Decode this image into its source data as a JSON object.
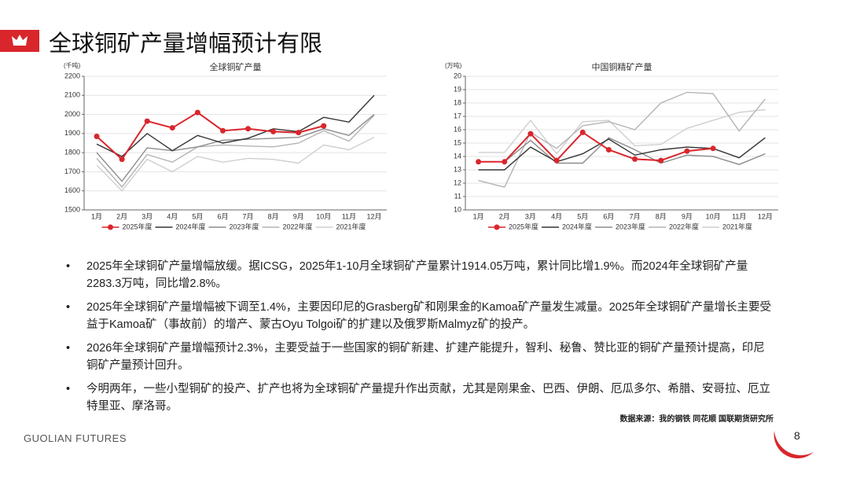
{
  "header": {
    "title": "全球铜矿产量增幅预计有限"
  },
  "chart_data": [
    {
      "type": "line",
      "title": "全球铜矿产量",
      "y_unit": "(千吨)",
      "categories": [
        "1月",
        "2月",
        "3月",
        "4月",
        "5月",
        "6月",
        "7月",
        "8月",
        "9月",
        "10月",
        "11月",
        "12月"
      ],
      "ylim": [
        1500,
        2200
      ],
      "yticks": [
        1500,
        1600,
        1700,
        1800,
        1900,
        2000,
        2100,
        2200
      ],
      "grid": true,
      "legend": "bottom",
      "series": [
        {
          "name": "2025年度",
          "color": "#d9262c",
          "marker": "circle",
          "values": [
            1885,
            1765,
            1965,
            1930,
            2010,
            1915,
            1925,
            1910,
            1905,
            1940,
            null,
            null
          ]
        },
        {
          "name": "2024年度",
          "color": "#333333",
          "values": [
            1845,
            1780,
            1900,
            1810,
            1890,
            1850,
            1875,
            1925,
            1910,
            1985,
            1960,
            2100
          ]
        },
        {
          "name": "2023年度",
          "color": "#8c8c8c",
          "values": [
            1800,
            1650,
            1825,
            1810,
            1830,
            1865,
            1870,
            1875,
            1880,
            1925,
            1890,
            2000
          ]
        },
        {
          "name": "2022年度",
          "color": "#b4b4b4",
          "values": [
            1770,
            1620,
            1790,
            1750,
            1830,
            1840,
            1835,
            1830,
            1850,
            1915,
            1860,
            1995
          ]
        },
        {
          "name": "2021年度",
          "color": "#cfcfcf",
          "values": [
            1735,
            1600,
            1765,
            1700,
            1780,
            1750,
            1770,
            1765,
            1745,
            1840,
            1815,
            1880
          ]
        }
      ]
    },
    {
      "type": "line",
      "title": "中国铜精矿产量",
      "y_unit": "(万吨)",
      "categories": [
        "1月",
        "2月",
        "3月",
        "4月",
        "5月",
        "6月",
        "7月",
        "8月",
        "9月",
        "10月",
        "11月",
        "12月"
      ],
      "ylim": [
        10,
        20
      ],
      "yticks": [
        10,
        11,
        12,
        13,
        14,
        15,
        16,
        17,
        18,
        19,
        20
      ],
      "grid": true,
      "legend": "bottom",
      "series": [
        {
          "name": "2025年度",
          "color": "#d9262c",
          "marker": "circle",
          "values": [
            13.6,
            13.6,
            15.7,
            13.7,
            15.8,
            14.5,
            13.8,
            13.7,
            14.4,
            14.6,
            null,
            null
          ]
        },
        {
          "name": "2024年度",
          "color": "#333333",
          "values": [
            13.0,
            13.0,
            14.7,
            13.6,
            14.2,
            15.3,
            14.1,
            14.5,
            14.7,
            14.6,
            13.9,
            15.4
          ]
        },
        {
          "name": "2023年度",
          "color": "#8c8c8c",
          "values": [
            13.6,
            13.6,
            15.2,
            13.5,
            13.5,
            15.4,
            14.5,
            13.5,
            14.1,
            14.0,
            13.4,
            14.2
          ]
        },
        {
          "name": "2022年度",
          "color": "#b4b4b4",
          "values": [
            12.2,
            11.7,
            15.8,
            14.6,
            16.3,
            16.6,
            16.0,
            18.0,
            18.8,
            18.7,
            15.9,
            18.3
          ]
        },
        {
          "name": "2021年度",
          "color": "#cfcfcf",
          "values": [
            14.3,
            14.3,
            16.7,
            14.2,
            16.6,
            16.7,
            14.8,
            14.9,
            16.1,
            16.7,
            17.3,
            17.5
          ]
        }
      ]
    }
  ],
  "bullets": [
    "2025年全球铜矿产量增幅放缓。据ICSG，2025年1-10月全球铜矿产量累计1914.05万吨，累计同比增1.9%。而2024年全球铜矿产量2283.3万吨，同比增2.8%。",
    "2025年全球铜矿产量增幅被下调至1.4%，主要因印尼的Grasberg矿和刚果金的Kamoa矿产量发生减量。2025年全球铜矿产量增长主要受益于Kamoa矿（事故前）的增产、蒙古Oyu Tolgoi矿的扩建以及俄罗斯Malmyz矿的投产。",
    "2026年全球铜矿产量增幅预计2.3%，主要受益于一些国家的铜矿新建、扩建产能提升，智利、秘鲁、赞比亚的铜矿产量预计提高，印尼铜矿产量预计回升。",
    "今明两年，一些小型铜矿的投产、扩产也将为全球铜矿产量提升作出贡献，尤其是刚果金、巴西、伊朗、厄瓜多尔、希腊、安哥拉、厄立特里亚、摩洛哥。"
  ],
  "source": "数据来源：我的钢铁 同花顺 国联期货研究所",
  "footer": {
    "brand": "GUOLIAN FUTURES",
    "page": "8"
  }
}
